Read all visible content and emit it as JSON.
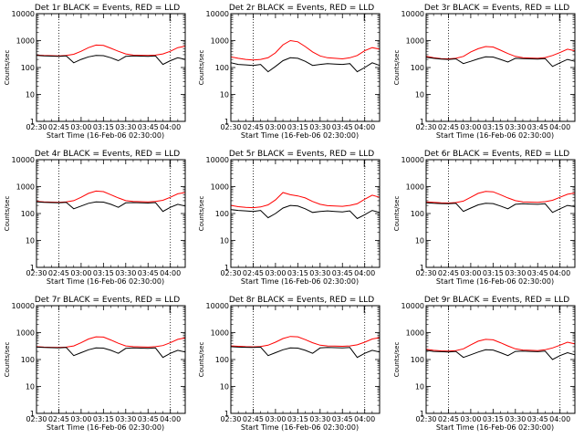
{
  "figure": {
    "xlabel": "Start Time (16-Feb-06 02:30:00)",
    "ylabel": "Counts/sec",
    "legend_marker": "[",
    "x_ticks": [
      "02:30",
      "02:45",
      "03:00",
      "03:15",
      "03:30",
      "03:45",
      "04:00"
    ],
    "y_ticks": [
      "1",
      "10",
      "100",
      "1000",
      "10000"
    ],
    "colors": {
      "events": "#000000",
      "lld": "#ff0000",
      "axes": "#000000",
      "background": "#ffffff"
    }
  },
  "chart_data": [
    {
      "type": "line",
      "title": "Det 1r BLACK = Events, RED = LLD",
      "xlabel": "Start Time (16-Feb-06 02:30:00)",
      "ylabel": "Counts/sec",
      "x_unit": "minutes after 02:30",
      "xlim": [
        0,
        100
      ],
      "ylim": [
        1,
        10000
      ],
      "yscale": "log",
      "grid": false,
      "dotted_x": [
        15,
        90
      ],
      "x": [
        0,
        5,
        10,
        15,
        20,
        25,
        30,
        35,
        40,
        45,
        50,
        55,
        60,
        65,
        70,
        75,
        80,
        85,
        90,
        95,
        100
      ],
      "series": [
        {
          "name": "LLD",
          "color": "#ff0000",
          "values": [
            290,
            280,
            275,
            270,
            280,
            310,
            400,
            550,
            680,
            660,
            520,
            400,
            320,
            290,
            285,
            280,
            290,
            320,
            400,
            550,
            620
          ]
        },
        {
          "name": "Events",
          "color": "#000000",
          "values": [
            280,
            270,
            265,
            260,
            270,
            150,
            200,
            250,
            280,
            275,
            230,
            180,
            260,
            270,
            265,
            260,
            270,
            130,
            180,
            230,
            200
          ]
        }
      ]
    },
    {
      "type": "line",
      "title": "Det 2r BLACK = Events, RED = LLD",
      "xlabel": "Start Time (16-Feb-06 02:30:00)",
      "ylabel": "Counts/sec",
      "x_unit": "minutes after 02:30",
      "xlim": [
        0,
        100
      ],
      "ylim": [
        1,
        10000
      ],
      "yscale": "log",
      "grid": false,
      "dotted_x": [
        15,
        90
      ],
      "x": [
        0,
        5,
        10,
        15,
        20,
        25,
        30,
        35,
        40,
        45,
        50,
        55,
        60,
        65,
        70,
        75,
        80,
        85,
        90,
        95,
        100
      ],
      "series": [
        {
          "name": "LLD",
          "color": "#ff0000",
          "values": [
            250,
            220,
            200,
            190,
            200,
            230,
            350,
            700,
            1000,
            900,
            600,
            380,
            270,
            230,
            220,
            210,
            230,
            280,
            420,
            550,
            480
          ]
        },
        {
          "name": "Events",
          "color": "#000000",
          "values": [
            150,
            130,
            125,
            120,
            130,
            70,
            110,
            180,
            230,
            220,
            170,
            120,
            130,
            140,
            135,
            130,
            140,
            70,
            100,
            150,
            120
          ]
        }
      ]
    },
    {
      "type": "line",
      "title": "Det 3r BLACK = Events, RED = LLD",
      "xlabel": "Start Time (16-Feb-06 02:30:00)",
      "ylabel": "Counts/sec",
      "x_unit": "minutes after 02:30",
      "xlim": [
        0,
        100
      ],
      "ylim": [
        1,
        10000
      ],
      "yscale": "log",
      "grid": false,
      "dotted_x": [
        15,
        90
      ],
      "x": [
        0,
        5,
        10,
        15,
        20,
        25,
        30,
        35,
        40,
        45,
        50,
        55,
        60,
        65,
        70,
        75,
        80,
        85,
        90,
        95,
        100
      ],
      "series": [
        {
          "name": "LLD",
          "color": "#ff0000",
          "values": [
            260,
            230,
            215,
            210,
            220,
            260,
            380,
            500,
            600,
            580,
            440,
            330,
            260,
            230,
            225,
            220,
            235,
            280,
            360,
            480,
            420
          ]
        },
        {
          "name": "Events",
          "color": "#000000",
          "values": [
            240,
            220,
            205,
            200,
            210,
            140,
            170,
            210,
            250,
            245,
            200,
            160,
            220,
            215,
            210,
            205,
            215,
            110,
            150,
            200,
            170
          ]
        }
      ]
    },
    {
      "type": "line",
      "title": "Det 4r BLACK = Events, RED = LLD",
      "xlabel": "Start Time (16-Feb-06 02:30:00)",
      "ylabel": "Counts/sec",
      "x_unit": "minutes after 02:30",
      "xlim": [
        0,
        100
      ],
      "ylim": [
        1,
        10000
      ],
      "yscale": "log",
      "grid": false,
      "dotted_x": [
        15,
        90
      ],
      "x": [
        0,
        5,
        10,
        15,
        20,
        25,
        30,
        35,
        40,
        45,
        50,
        55,
        60,
        65,
        70,
        75,
        80,
        85,
        90,
        95,
        100
      ],
      "series": [
        {
          "name": "LLD",
          "color": "#ff0000",
          "values": [
            280,
            270,
            265,
            260,
            270,
            300,
            400,
            560,
            680,
            650,
            500,
            380,
            300,
            280,
            275,
            270,
            280,
            310,
            400,
            540,
            600
          ]
        },
        {
          "name": "Events",
          "color": "#000000",
          "values": [
            270,
            260,
            255,
            250,
            260,
            150,
            190,
            240,
            270,
            265,
            220,
            170,
            250,
            255,
            250,
            245,
            255,
            120,
            170,
            220,
            190
          ]
        }
      ]
    },
    {
      "type": "line",
      "title": "Det 5r BLACK = Events, RED = LLD",
      "xlabel": "Start Time (16-Feb-06 02:30:00)",
      "ylabel": "Counts/sec",
      "x_unit": "minutes after 02:30",
      "xlim": [
        0,
        100
      ],
      "ylim": [
        1,
        10000
      ],
      "yscale": "log",
      "grid": false,
      "dotted_x": [
        15,
        90
      ],
      "x": [
        0,
        5,
        10,
        15,
        20,
        25,
        30,
        35,
        40,
        45,
        50,
        55,
        60,
        65,
        70,
        75,
        80,
        85,
        90,
        95,
        100
      ],
      "series": [
        {
          "name": "LLD",
          "color": "#ff0000",
          "values": [
            200,
            180,
            170,
            165,
            175,
            210,
            320,
            600,
            500,
            450,
            380,
            280,
            220,
            195,
            190,
            185,
            200,
            230,
            340,
            480,
            400
          ]
        },
        {
          "name": "Events",
          "color": "#000000",
          "values": [
            140,
            130,
            125,
            120,
            130,
            70,
            100,
            160,
            200,
            190,
            150,
            110,
            120,
            125,
            120,
            115,
            125,
            65,
            90,
            130,
            110
          ]
        }
      ]
    },
    {
      "type": "line",
      "title": "Det 6r BLACK = Events, RED = LLD",
      "xlabel": "Start Time (16-Feb-06 02:30:00)",
      "ylabel": "Counts/sec",
      "x_unit": "minutes after 02:30",
      "xlim": [
        0,
        100
      ],
      "ylim": [
        1,
        10000
      ],
      "yscale": "log",
      "grid": false,
      "dotted_x": [
        15,
        90
      ],
      "x": [
        0,
        5,
        10,
        15,
        20,
        25,
        30,
        35,
        40,
        45,
        50,
        55,
        60,
        65,
        70,
        75,
        80,
        85,
        90,
        95,
        100
      ],
      "series": [
        {
          "name": "LLD",
          "color": "#ff0000",
          "values": [
            270,
            260,
            250,
            245,
            255,
            290,
            400,
            560,
            660,
            640,
            500,
            380,
            300,
            270,
            265,
            260,
            275,
            310,
            400,
            520,
            580
          ]
        },
        {
          "name": "Events",
          "color": "#000000",
          "values": [
            250,
            240,
            235,
            230,
            240,
            120,
            160,
            210,
            240,
            235,
            190,
            150,
            220,
            230,
            225,
            220,
            230,
            110,
            150,
            200,
            180
          ]
        }
      ]
    },
    {
      "type": "line",
      "title": "Det 7r BLACK = Events, RED = LLD",
      "xlabel": "Start Time (16-Feb-06 02:30:00)",
      "ylabel": "Counts/sec",
      "x_unit": "minutes after 02:30",
      "xlim": [
        0,
        100
      ],
      "ylim": [
        1,
        10000
      ],
      "yscale": "log",
      "grid": false,
      "dotted_x": [
        15,
        90
      ],
      "x": [
        0,
        5,
        10,
        15,
        20,
        25,
        30,
        35,
        40,
        45,
        50,
        55,
        60,
        65,
        70,
        75,
        80,
        85,
        90,
        95,
        100
      ],
      "series": [
        {
          "name": "LLD",
          "color": "#ff0000",
          "values": [
            300,
            290,
            285,
            280,
            290,
            320,
            420,
            580,
            700,
            680,
            530,
            400,
            320,
            300,
            295,
            290,
            300,
            330,
            420,
            560,
            640
          ]
        },
        {
          "name": "Events",
          "color": "#000000",
          "values": [
            290,
            280,
            275,
            270,
            280,
            140,
            180,
            230,
            270,
            265,
            220,
            170,
            260,
            270,
            265,
            260,
            270,
            120,
            170,
            220,
            190
          ]
        }
      ]
    },
    {
      "type": "line",
      "title": "Det 8r BLACK = Events, RED = LLD",
      "xlabel": "Start Time (16-Feb-06 02:30:00)",
      "ylabel": "Counts/sec",
      "x_unit": "minutes after 02:30",
      "xlim": [
        0,
        100
      ],
      "ylim": [
        1,
        10000
      ],
      "yscale": "log",
      "grid": false,
      "dotted_x": [
        15,
        90
      ],
      "x": [
        0,
        5,
        10,
        15,
        20,
        25,
        30,
        35,
        40,
        45,
        50,
        55,
        60,
        65,
        70,
        75,
        80,
        85,
        90,
        95,
        100
      ],
      "series": [
        {
          "name": "LLD",
          "color": "#ff0000",
          "values": [
            320,
            310,
            300,
            295,
            305,
            340,
            440,
            600,
            720,
            700,
            550,
            420,
            340,
            320,
            315,
            310,
            320,
            350,
            440,
            580,
            650
          ]
        },
        {
          "name": "Events",
          "color": "#000000",
          "values": [
            300,
            290,
            285,
            280,
            290,
            140,
            180,
            230,
            270,
            265,
            220,
            170,
            270,
            280,
            275,
            270,
            280,
            120,
            170,
            220,
            190
          ]
        }
      ]
    },
    {
      "type": "line",
      "title": "Det 9r BLACK = Events, RED = LLD",
      "xlabel": "Start Time (16-Feb-06 02:30:00)",
      "ylabel": "Counts/sec",
      "x_unit": "minutes after 02:30",
      "xlim": [
        0,
        100
      ],
      "ylim": [
        1,
        10000
      ],
      "yscale": "log",
      "grid": false,
      "dotted_x": [
        15,
        90
      ],
      "x": [
        0,
        5,
        10,
        15,
        20,
        25,
        30,
        35,
        40,
        45,
        50,
        55,
        60,
        65,
        70,
        75,
        80,
        85,
        90,
        95,
        100
      ],
      "series": [
        {
          "name": "LLD",
          "color": "#ff0000",
          "values": [
            240,
            220,
            210,
            205,
            215,
            250,
            350,
            480,
            560,
            540,
            420,
            320,
            250,
            225,
            220,
            215,
            230,
            270,
            340,
            440,
            380
          ]
        },
        {
          "name": "Events",
          "color": "#000000",
          "values": [
            220,
            200,
            195,
            190,
            200,
            120,
            150,
            190,
            230,
            225,
            180,
            140,
            200,
            205,
            200,
            195,
            205,
            100,
            140,
            180,
            150
          ]
        }
      ]
    }
  ]
}
